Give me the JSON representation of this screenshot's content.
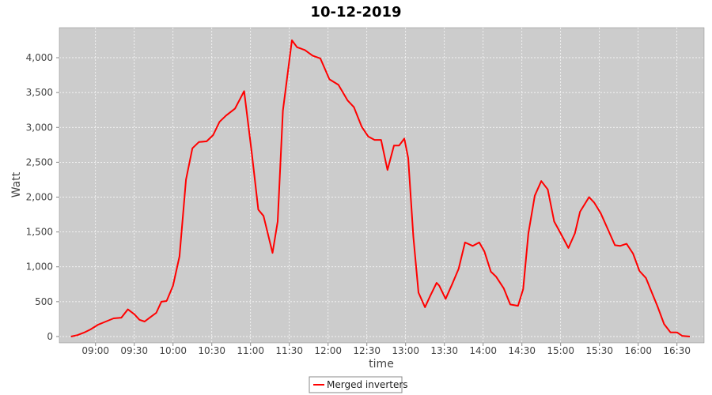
{
  "chart_data": {
    "type": "line",
    "title": "10-12-2019",
    "x_label": "time",
    "y_label": "Watt",
    "x": [
      "08:41",
      "08:46",
      "08:51",
      "08:56",
      "09:02",
      "09:08",
      "09:14",
      "09:20",
      "09:25",
      "09:30",
      "09:34",
      "09:38",
      "09:42",
      "09:47",
      "09:51",
      "09:55",
      "10:00",
      "10:05",
      "10:10",
      "10:15",
      "10:20",
      "10:26",
      "10:31",
      "10:36",
      "10:41",
      "10:48",
      "10:55",
      "11:01",
      "11:06",
      "11:10",
      "11:17",
      "11:21",
      "11:25",
      "11:32",
      "11:36",
      "11:42",
      "11:48",
      "11:54",
      "12:01",
      "12:08",
      "12:15",
      "12:20",
      "12:26",
      "12:31",
      "12:36",
      "12:41",
      "12:46",
      "12:51",
      "12:55",
      "12:59",
      "13:02",
      "13:06",
      "13:10",
      "13:15",
      "13:19",
      "13:24",
      "13:26",
      "13:31",
      "13:36",
      "13:41",
      "13:46",
      "13:52",
      "13:57",
      "14:01",
      "14:06",
      "14:10",
      "14:16",
      "14:21",
      "14:27",
      "14:31",
      "14:35",
      "14:40",
      "14:45",
      "14:50",
      "14:55",
      "15:00",
      "15:06",
      "15:11",
      "15:15",
      "15:22",
      "15:26",
      "15:31",
      "15:37",
      "15:42",
      "15:46",
      "15:51",
      "15:56",
      "16:01",
      "16:06",
      "16:11",
      "16:15",
      "16:20",
      "16:25",
      "16:30",
      "16:34",
      "16:40"
    ],
    "series": [
      {
        "name": "Merged inverters",
        "color": "#ff0000",
        "values": [
          0,
          20,
          55,
          100,
          170,
          215,
          260,
          270,
          390,
          320,
          240,
          215,
          270,
          340,
          500,
          510,
          730,
          1150,
          2250,
          2700,
          2790,
          2800,
          2890,
          3080,
          3170,
          3270,
          3520,
          2620,
          1820,
          1730,
          1200,
          1650,
          3240,
          4250,
          4150,
          4110,
          4030,
          3990,
          3690,
          3610,
          3390,
          3290,
          3010,
          2870,
          2820,
          2820,
          2390,
          2740,
          2740,
          2840,
          2560,
          1430,
          630,
          420,
          580,
          770,
          730,
          540,
          750,
          970,
          1350,
          1300,
          1350,
          1220,
          930,
          860,
          690,
          460,
          440,
          680,
          1480,
          2020,
          2230,
          2110,
          1650,
          1480,
          1270,
          1480,
          1790,
          2000,
          1920,
          1770,
          1520,
          1310,
          1300,
          1330,
          1190,
          940,
          840,
          610,
          430,
          180,
          60,
          60,
          10,
          0
        ]
      }
    ],
    "xlim": [
      "08:32",
      "16:51"
    ],
    "xticks": [
      "09:00",
      "09:30",
      "10:00",
      "10:30",
      "11:00",
      "11:30",
      "12:00",
      "12:30",
      "13:00",
      "13:30",
      "14:00",
      "14:30",
      "15:00",
      "15:30",
      "16:00",
      "16:30"
    ],
    "ylim": [
      -91,
      4431
    ],
    "yticks": [
      0,
      500,
      {
        "value": 1000,
        "label": "1,000"
      },
      {
        "value": 1500,
        "label": "1,500"
      },
      {
        "value": 2000,
        "label": "2,000"
      },
      {
        "value": 2500,
        "label": "2,500"
      },
      {
        "value": 3000,
        "label": "3,000"
      },
      {
        "value": 3500,
        "label": "3,500"
      },
      {
        "value": 4000,
        "label": "4,000"
      }
    ],
    "grid": true,
    "legend": "bottom"
  }
}
